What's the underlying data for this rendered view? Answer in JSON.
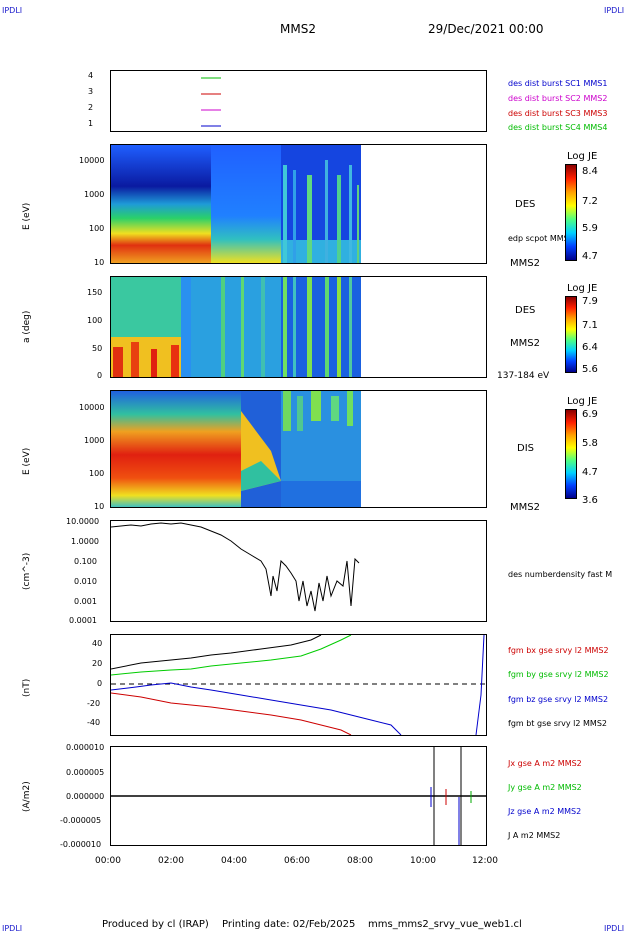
{
  "corners": {
    "tl": "IPDLI",
    "tr": "IPDLI",
    "bl": "IPDLI",
    "br": "IPDLI"
  },
  "header": {
    "mission": "MMS2",
    "datetime": "29/Dec/2021 00:00"
  },
  "footer": {
    "produced": "Produced by cl (IRAP)",
    "printing": "Printing date: 02/Feb/2025",
    "file": "mms_mms2_srvy_vue_web1.cl"
  },
  "colors": {
    "c1": "#0000cc",
    "c2": "#cc00cc",
    "c3": "#cc0000",
    "c4": "#00bb00"
  },
  "chart_data": [
    {
      "type": "line",
      "panel": "availability",
      "yticks": [
        "4",
        "3",
        "2",
        "1"
      ],
      "legend": [
        "des dist burst SC1 MMS1",
        "des dist burst SC2 MMS2",
        "des dist burst SC3 MMS3",
        "des dist burst SC4 MMS4"
      ]
    },
    {
      "type": "heatmap",
      "panel": "des-energy",
      "ylabel": "E (eV)",
      "yticks": [
        "10000",
        "1000",
        "100",
        "10"
      ],
      "labels": {
        "species": "DES",
        "extra": "edp scpot MMS2",
        "probe": "MMS2"
      },
      "colorbar": {
        "title": "Log JE",
        "ticks": [
          "8.4",
          "7.2",
          "5.9",
          "4.7"
        ]
      },
      "data_until": "08:00"
    },
    {
      "type": "heatmap",
      "panel": "des-pitch",
      "ylabel": "a (deg)",
      "yticks": [
        "150",
        "100",
        "50",
        "0"
      ],
      "labels": {
        "species": "DES",
        "probe": "MMS2",
        "range": "137-184 eV"
      },
      "colorbar": {
        "title": "Log JE",
        "ticks": [
          "7.9",
          "7.1",
          "6.4",
          "5.6"
        ]
      },
      "data_until": "08:00"
    },
    {
      "type": "heatmap",
      "panel": "dis-energy",
      "ylabel": "E (eV)",
      "yticks": [
        "10000",
        "1000",
        "100",
        "10"
      ],
      "labels": {
        "species": "DIS",
        "probe": "MMS2"
      },
      "colorbar": {
        "title": "Log JE",
        "ticks": [
          "6.9",
          "5.8",
          "4.7",
          "3.6"
        ]
      },
      "data_until": "08:00"
    },
    {
      "type": "line",
      "panel": "density",
      "ylabel": "(cm^-3)",
      "yticks": [
        "10.0000",
        "1.0000",
        "0.100",
        "0.010",
        "0.001",
        "0.0001"
      ],
      "legend": [
        "des numberdensity fast M"
      ],
      "series": [
        {
          "x": [
            "00:00",
            "01:00",
            "02:00",
            "03:00",
            "04:00",
            "05:00",
            "05:30",
            "06:00",
            "06:30",
            "07:00",
            "07:30",
            "08:00"
          ],
          "values": [
            7,
            7.5,
            8.5,
            5,
            1,
            0.1,
            0.05,
            0.02,
            0.005,
            0.01,
            0.05,
            0.1
          ]
        }
      ]
    },
    {
      "type": "line",
      "panel": "fgm",
      "ylabel": "(nT)",
      "yticks": [
        "40",
        "20",
        "0",
        "-20",
        "-40"
      ],
      "legend": [
        "fgm bx gse srvy l2 MMS2",
        "fgm by gse srvy l2 MMS2",
        "fgm bz gse srvy l2 MMS2",
        "fgm bt gse srvy l2 MMS2"
      ],
      "x": [
        "00:00",
        "02:00",
        "04:00",
        "06:00",
        "08:00",
        "09:00",
        "10:00",
        "12:00"
      ],
      "series": [
        {
          "name": "fgm bx gse srvy l2 MMS2",
          "values": [
            -8,
            -20,
            -25,
            -32,
            -40,
            -48,
            null,
            null
          ]
        },
        {
          "name": "fgm by gse srvy l2 MMS2",
          "values": [
            10,
            16,
            24,
            34,
            48,
            null,
            null,
            null
          ]
        },
        {
          "name": "fgm bz gse srvy l2 MMS2",
          "values": [
            -5,
            0,
            -5,
            -10,
            -20,
            -40,
            null,
            40
          ]
        },
        {
          "name": "fgm bt gse srvy l2 MMS2",
          "values": [
            15,
            24,
            30,
            42,
            null,
            null,
            null,
            null
          ]
        }
      ]
    },
    {
      "type": "line",
      "panel": "current",
      "ylabel": "(A/m2)",
      "yticks": [
        "0.000010",
        "0.000005",
        "0.000000",
        "-0.000005",
        "-0.000010"
      ],
      "legend": [
        "Jx gse A m2 MMS2",
        "Jy gse A m2 MMS2",
        "Jz gse A m2 MMS2",
        "J A m2 MMS2"
      ]
    }
  ],
  "xaxis": {
    "ticks": [
      "00:00",
      "02:00",
      "04:00",
      "06:00",
      "08:00",
      "10:00",
      "12:00"
    ]
  }
}
